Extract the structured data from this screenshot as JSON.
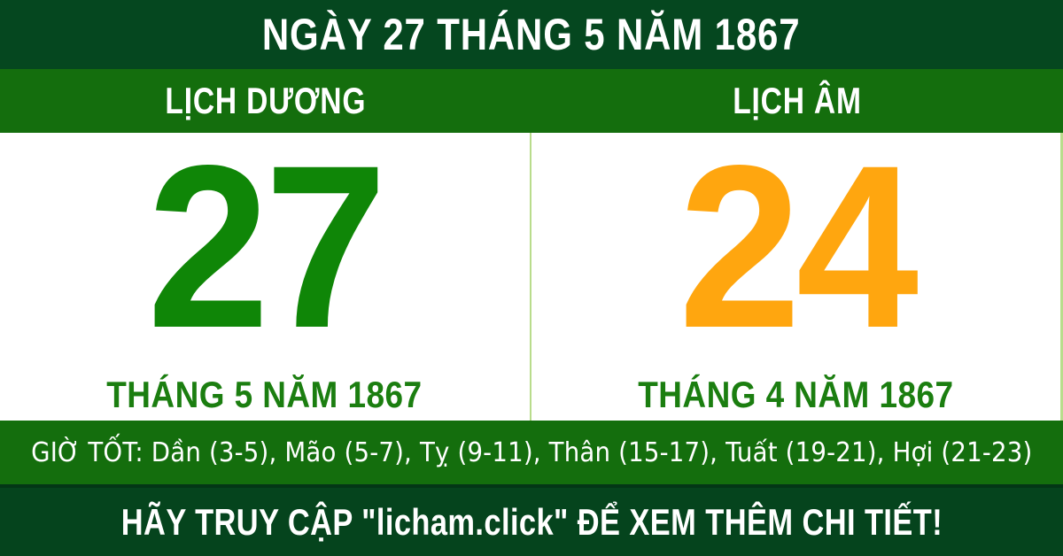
{
  "header": {
    "title": "NGÀY 27 THÁNG 5 NĂM 1867"
  },
  "columns": {
    "solar": {
      "label": "LỊCH DƯƠNG",
      "day": "27",
      "month_year": "THÁNG 5 NĂM 1867"
    },
    "lunar": {
      "label": "LỊCH ÂM",
      "day": "24",
      "month_year": "THÁNG 4 NĂM 1867"
    }
  },
  "good_hours": {
    "text": "GIỜ TỐT: Dần (3-5), Mão (5-7), Tỵ (9-11), Thân (15-17), Tuất (19-21), Hợi (21-23)"
  },
  "footer": {
    "text": "HÃY TRUY CẬP \"licham.click\" ĐỂ XEM THÊM CHI TIẾT!"
  },
  "colors": {
    "header_bg": "#05471f",
    "band_bg": "#146e0d",
    "panel_bg": "#ffffff",
    "solar_day": "#0f8607",
    "lunar_day": "#ffa60f",
    "month_text": "#1b7e10",
    "divider": "#b9dc8c",
    "footer_bg": "#05441d",
    "footer_border": "#033616",
    "text_white": "#ffffff"
  }
}
